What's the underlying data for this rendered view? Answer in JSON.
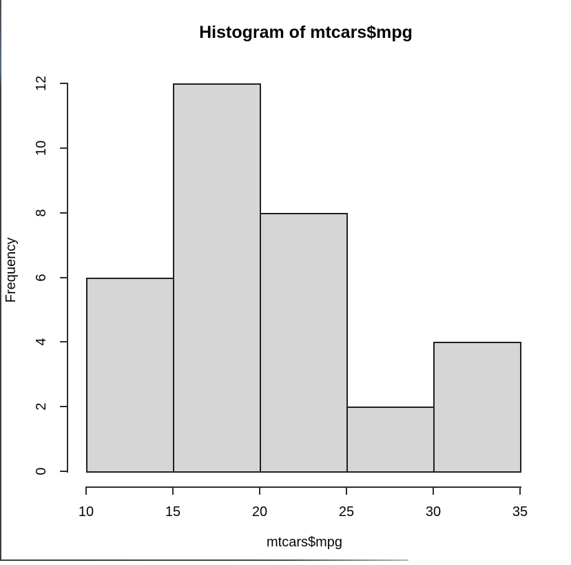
{
  "chart_data": {
    "type": "bar",
    "chart_kind": "histogram",
    "title": "Histogram of mtcars$mpg",
    "xlabel": "mtcars$mpg",
    "ylabel": "Frequency",
    "bin_edges": [
      10,
      15,
      20,
      25,
      30,
      35
    ],
    "counts": [
      6,
      12,
      8,
      2,
      4
    ],
    "x_ticks": [
      "10",
      "15",
      "20",
      "25",
      "30",
      "35"
    ],
    "y_ticks": [
      "0",
      "2",
      "4",
      "6",
      "8",
      "10",
      "12"
    ],
    "x_tick_values": [
      10,
      15,
      20,
      25,
      30,
      35
    ],
    "y_tick_values": [
      0,
      2,
      4,
      6,
      8,
      10,
      12
    ],
    "xlim": [
      10,
      35
    ],
    "ylim": [
      0,
      12
    ],
    "grid": false,
    "legend": false,
    "bar_fill": "#d6d6d6",
    "bar_border": "#1f1f1f",
    "axis_color": "#2d2d2d",
    "text_color": "#050505",
    "background": "#ffffff"
  }
}
